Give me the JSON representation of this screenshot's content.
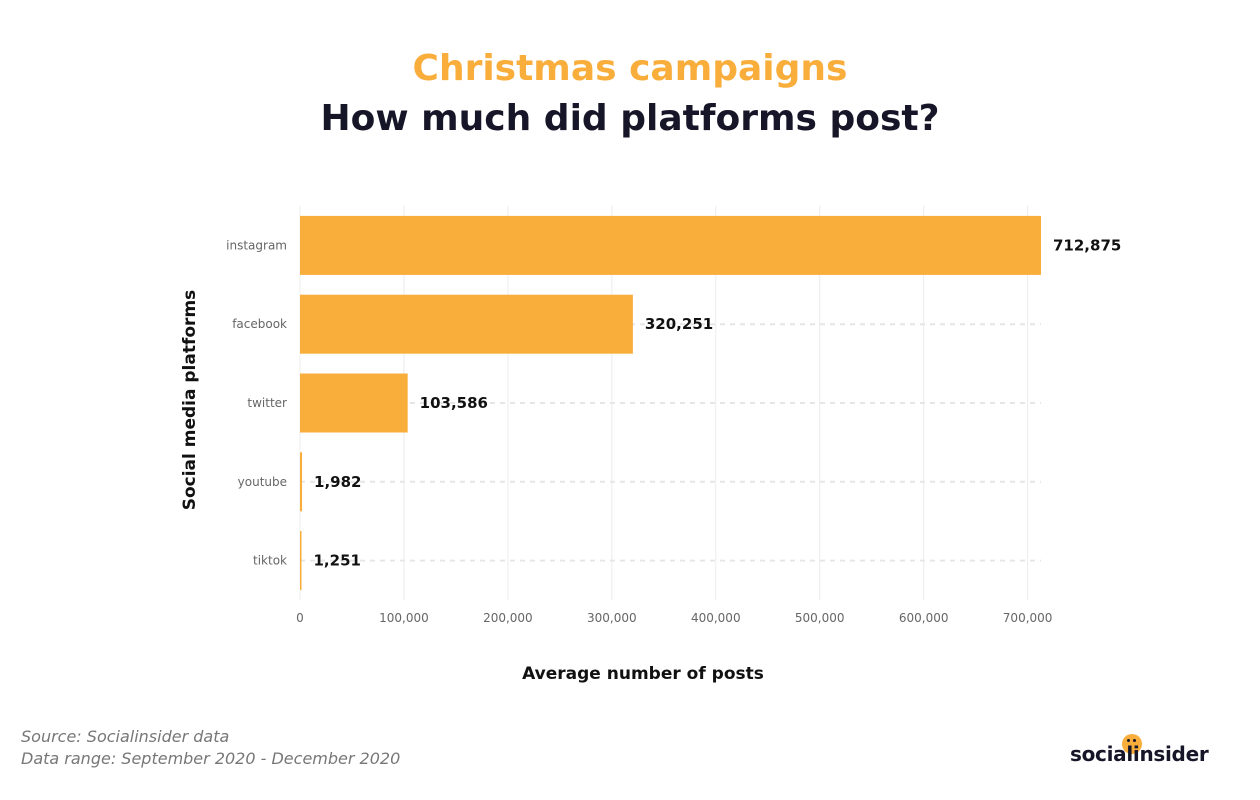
{
  "header": {
    "title": "Christmas campaigns",
    "subtitle": "How much did platforms post?"
  },
  "chart_data": {
    "type": "bar",
    "orientation": "horizontal",
    "categories": [
      "instagram",
      "facebook",
      "twitter",
      "youtube",
      "tiktok"
    ],
    "values": [
      712875,
      320251,
      103586,
      1982,
      1251
    ],
    "value_labels": [
      "712,875",
      "320,251",
      "103,586",
      "1,982",
      "1,251"
    ],
    "xlabel": "Average number of posts",
    "ylabel": "Social media platforms",
    "xlim": [
      0,
      712875
    ],
    "xticks": [
      0,
      100000,
      200000,
      300000,
      400000,
      500000,
      600000,
      700000
    ],
    "xtick_labels": [
      "0",
      "100,000",
      "200,000",
      "300,000",
      "400,000",
      "500,000",
      "600,000",
      "700,000"
    ],
    "grid": true,
    "bar_color": "#f9ad3b"
  },
  "footer": {
    "source": "Source: Socialinsider data",
    "range": "Data range: September 2020 - December 2020"
  },
  "logo": {
    "text": "socialinsider",
    "color": "#f9ad3b"
  }
}
